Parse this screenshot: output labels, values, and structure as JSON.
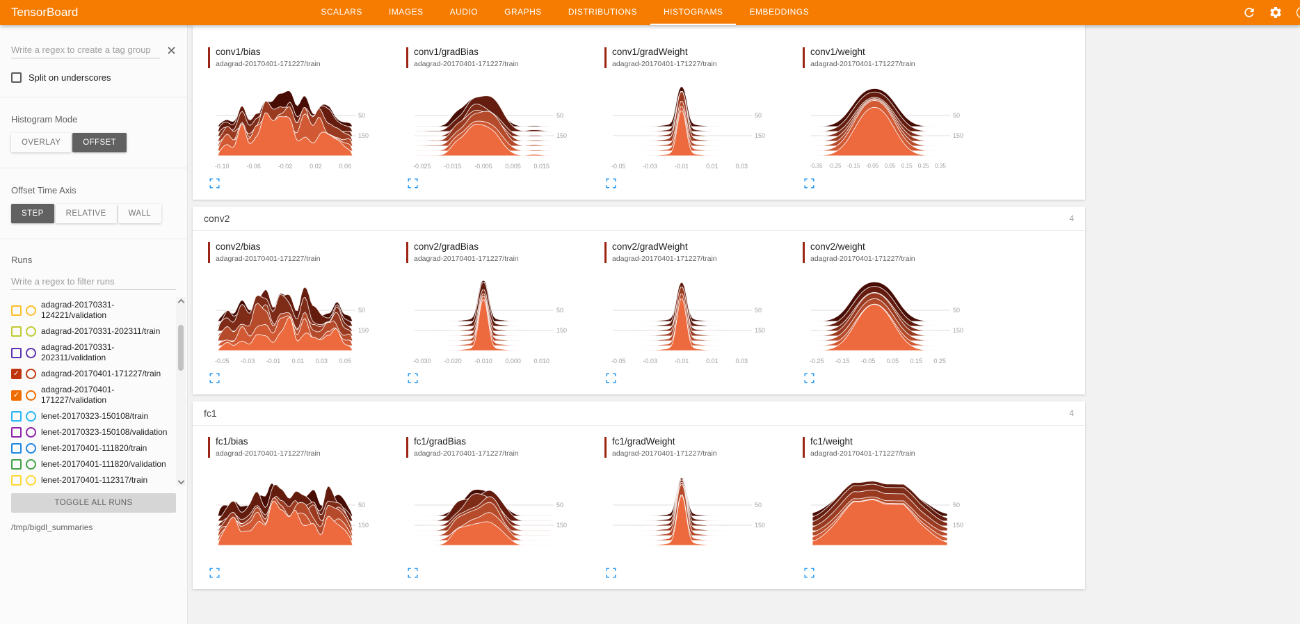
{
  "colors": {
    "header_bg": "#f57c00",
    "accent_blue": "#2196f3",
    "ridge_dark": "#470c04",
    "ridge_light": "#ec6a3e",
    "card_marker": "#9b2412"
  },
  "icons": {
    "check_glyph": "✓",
    "header_icons": [
      "refresh-icon",
      "settings-icon",
      "help-icon"
    ]
  },
  "header": {
    "title": "TensorBoard",
    "tabs": [
      "SCALARS",
      "IMAGES",
      "AUDIO",
      "GRAPHS",
      "DISTRIBUTIONS",
      "HISTOGRAMS",
      "EMBEDDINGS"
    ],
    "active_tab": "HISTOGRAMS"
  },
  "sidebar": {
    "tag_filter_placeholder": "Write a regex to create a tag group",
    "split_label": "Split on underscores",
    "histogram_mode": {
      "label": "Histogram Mode",
      "options": [
        "OVERLAY",
        "OFFSET"
      ],
      "selected": "OFFSET"
    },
    "offset_time_axis": {
      "label": "Offset Time Axis",
      "options": [
        "STEP",
        "RELATIVE",
        "WALL"
      ],
      "selected": "STEP"
    },
    "runs_label": "Runs",
    "runs_filter_placeholder": "Write a regex to filter runs",
    "runs": [
      {
        "label": "adagrad-20170331-124221/validation",
        "color": "#fbc02d",
        "checked": false
      },
      {
        "label": "adagrad-20170331-202311/train",
        "color": "#c0ca33",
        "checked": false
      },
      {
        "label": "adagrad-20170331-202311/validation",
        "color": "#5e35b1",
        "checked": false
      },
      {
        "label": "adagrad-20170401-171227/train",
        "color": "#bf360c",
        "checked": true
      },
      {
        "label": "adagrad-20170401-171227/validation",
        "color": "#ef6c00",
        "checked": true
      },
      {
        "label": "lenet-20170323-150108/train",
        "color": "#29b6f6",
        "checked": false
      },
      {
        "label": "lenet-20170323-150108/validation",
        "color": "#8e24aa",
        "checked": false
      },
      {
        "label": "lenet-20170401-111820/train",
        "color": "#1e88e5",
        "checked": false
      },
      {
        "label": "lenet-20170401-111820/validation",
        "color": "#43a047",
        "checked": false
      },
      {
        "label": "lenet-20170401-112317/train",
        "color": "#fdd835",
        "checked": false
      }
    ],
    "toggle_all_label": "TOGGLE ALL RUNS",
    "log_dir": "/tmp/bigdl_summaries"
  },
  "main": {
    "groups": [
      {
        "name": "",
        "count": "",
        "header_visible": false,
        "cards": [
          {
            "title": "conv1/bias",
            "run": "adagrad-20170401-171227/train",
            "profile": "jagged",
            "seed": 3,
            "ticks": [
              "-0.10",
              "-0.06",
              "-0.02",
              "0.02",
              "0.06"
            ],
            "ylabels": [
              "50",
              "150"
            ]
          },
          {
            "title": "conv1/gradBias",
            "run": "adagrad-20170401-171227/train",
            "profile": "peak",
            "seed": 11,
            "ticks": [
              "-0.025",
              "-0.015",
              "-0.005",
              "0.005",
              "0.015"
            ],
            "ylabels": [
              "50",
              "150"
            ]
          },
          {
            "title": "conv1/gradWeight",
            "run": "adagrad-20170401-171227/train",
            "profile": "spike",
            "seed": 5,
            "ticks": [
              "-0.05",
              "-0.03",
              "-0.01",
              "0.01",
              "0.03"
            ],
            "ylabels": [
              "50",
              "150"
            ]
          },
          {
            "title": "conv1/weight",
            "run": "adagrad-20170401-171227/train",
            "profile": "bell",
            "seed": 7,
            "ticks": [
              "-0.35",
              "-0.25",
              "-0.15",
              "-0.05",
              "0.05",
              "0.15",
              "0.25",
              "0.35"
            ],
            "ylabels": [
              "50",
              "150"
            ]
          }
        ]
      },
      {
        "name": "conv2",
        "count": "4",
        "header_visible": true,
        "cards": [
          {
            "title": "conv2/bias",
            "run": "adagrad-20170401-171227/train",
            "profile": "jagged",
            "seed": 21,
            "ticks": [
              "-0.05",
              "-0.03",
              "-0.01",
              "0.01",
              "0.03",
              "0.05"
            ],
            "ylabels": [
              "50",
              "150"
            ]
          },
          {
            "title": "conv2/gradBias",
            "run": "adagrad-20170401-171227/train",
            "profile": "spike",
            "seed": 23,
            "ticks": [
              "-0.030",
              "-0.020",
              "-0.010",
              "0.000",
              "0.010"
            ],
            "ylabels": [
              "50",
              "150"
            ]
          },
          {
            "title": "conv2/gradWeight",
            "run": "adagrad-20170401-171227/train",
            "profile": "spike",
            "seed": 25,
            "ticks": [
              "-0.05",
              "-0.03",
              "-0.01",
              "0.01",
              "0.03"
            ],
            "ylabels": [
              "50",
              "150"
            ]
          },
          {
            "title": "conv2/weight",
            "run": "adagrad-20170401-171227/train",
            "profile": "bell",
            "seed": 27,
            "ticks": [
              "-0.25",
              "-0.15",
              "-0.05",
              "0.05",
              "0.15",
              "0.25"
            ],
            "ylabels": [
              "50",
              "150"
            ]
          }
        ]
      },
      {
        "name": "fc1",
        "count": "4",
        "header_visible": true,
        "cards": [
          {
            "title": "fc1/bias",
            "run": "adagrad-20170401-171227/train",
            "profile": "jagged",
            "seed": 31,
            "ticks": [],
            "ylabels": [
              "50",
              "150"
            ]
          },
          {
            "title": "fc1/gradBias",
            "run": "adagrad-20170401-171227/train",
            "profile": "peak",
            "seed": 33,
            "ticks": [],
            "ylabels": [
              "50",
              "150"
            ]
          },
          {
            "title": "fc1/gradWeight",
            "run": "adagrad-20170401-171227/train",
            "profile": "spike",
            "seed": 35,
            "ticks": [],
            "ylabels": [
              "50",
              "150"
            ]
          },
          {
            "title": "fc1/weight",
            "run": "adagrad-20170401-171227/train",
            "profile": "plateau",
            "seed": 37,
            "ticks": [],
            "ylabels": [
              "50",
              "150"
            ]
          }
        ]
      }
    ]
  }
}
